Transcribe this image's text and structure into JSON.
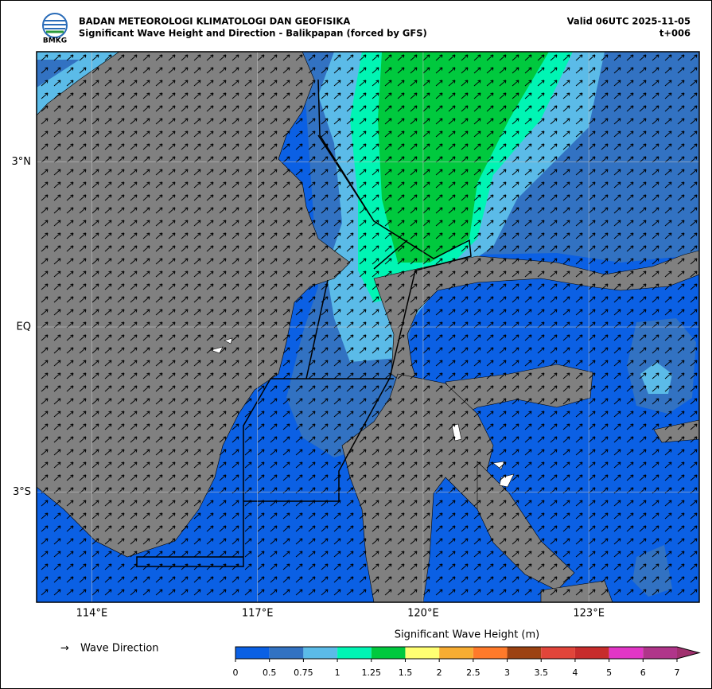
{
  "header": {
    "logo": "BMKG",
    "title": "BADAN METEOROLOGI KLIMATOLOGI DAN GEOFISIKA",
    "subtitle": "Significant Wave Height and Direction - Balikpapan (forced by GFS)",
    "valid": "Valid 06UTC 2025-11-05",
    "lead": "t+006"
  },
  "map": {
    "xlim": [
      113,
      125
    ],
    "ylim": [
      -5,
      5
    ],
    "xticks": [
      {
        "value": 114,
        "label": "114°E"
      },
      {
        "value": 117,
        "label": "117°E"
      },
      {
        "value": 120,
        "label": "120°E"
      },
      {
        "value": 123,
        "label": "123°E"
      }
    ],
    "yticks": [
      {
        "value": 3,
        "label": "3°N"
      },
      {
        "value": 0,
        "label": "EQ"
      },
      {
        "value": -3,
        "label": "3°S"
      }
    ],
    "grid": true
  },
  "legend": {
    "arrow": "→",
    "label": "Wave Direction"
  },
  "colorbar": {
    "title": "Significant Wave Height (m)",
    "levels": [
      0,
      0.5,
      0.75,
      1,
      1.25,
      1.5,
      2,
      2.5,
      3,
      3.5,
      4,
      5,
      6,
      7
    ],
    "colors": [
      "#0b60e4",
      "#3272c2",
      "#5bbbe8",
      "#00f5b4",
      "#00c93e",
      "#ffff72",
      "#f7ad32",
      "#ff7a2a",
      "#9c4212",
      "#e1453a",
      "#c72c2c",
      "#e236c6",
      "#b0358a",
      "#a0306e"
    ]
  }
}
